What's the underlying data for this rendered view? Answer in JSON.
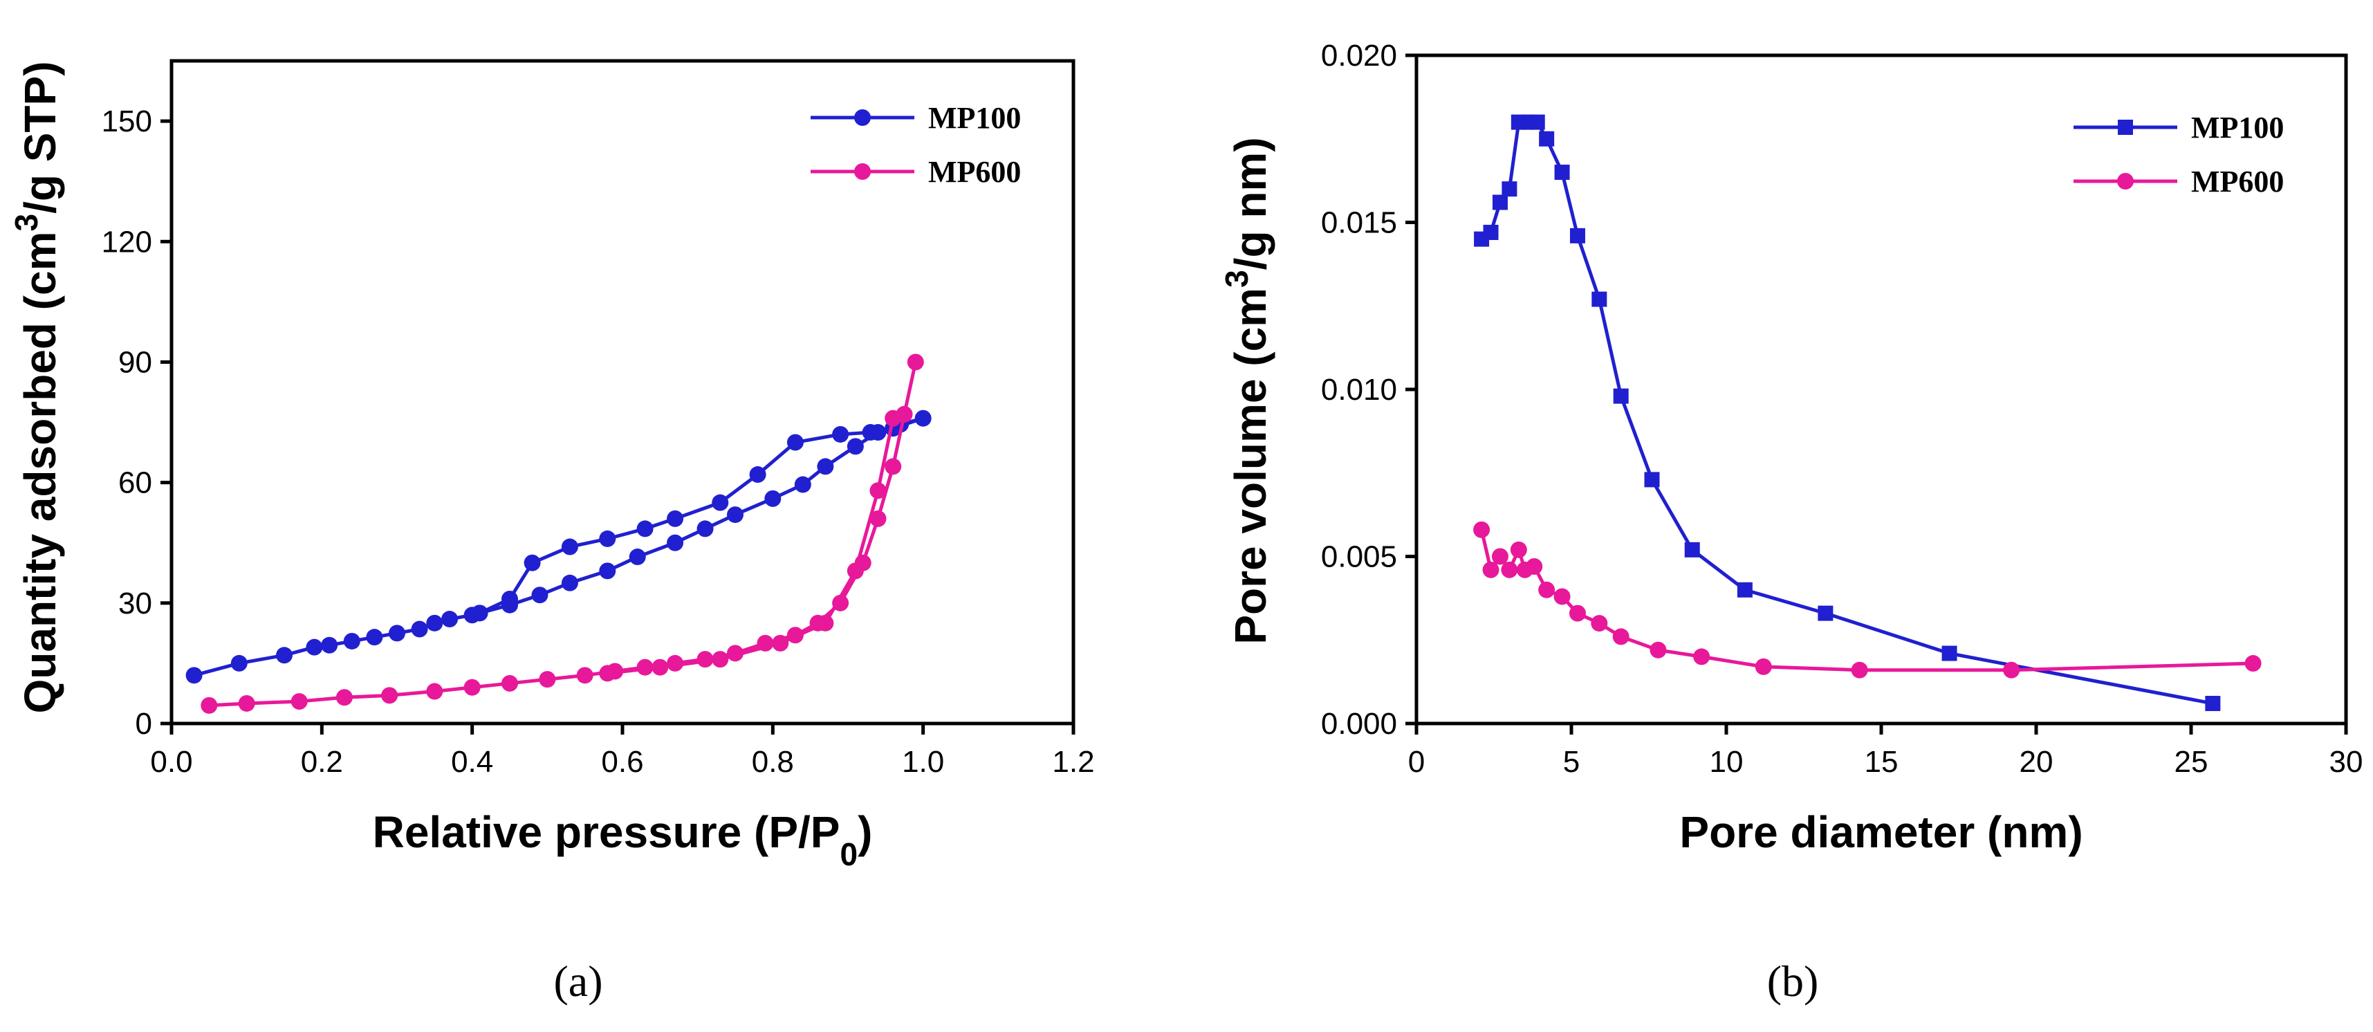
{
  "colors": {
    "mp100": "#2020d0",
    "mp600": "#e8189a"
  },
  "chart_data": [
    {
      "panel": "(a)",
      "type": "line",
      "xlabel": "Relative pressure (P/P0)",
      "ylabel": "Quantity adsorbed (cm3/g STP)",
      "xlim": [
        0.0,
        1.2
      ],
      "ylim": [
        0,
        165
      ],
      "xticks": [
        "0.0",
        "0.2",
        "0.4",
        "0.6",
        "0.8",
        "1.0",
        "1.2"
      ],
      "xtick_values": [
        0.0,
        0.2,
        0.4,
        0.6,
        0.8,
        1.0,
        1.2
      ],
      "yticks": [
        "0",
        "30",
        "60",
        "90",
        "120",
        "150"
      ],
      "ytick_values": [
        0,
        30,
        60,
        90,
        120,
        150
      ],
      "legend_position": "top-right",
      "series": [
        {
          "name": "MP100",
          "color_key": "mp100",
          "marker": "circle",
          "x": [
            0.03,
            0.09,
            0.15,
            0.19,
            0.21,
            0.24,
            0.27,
            0.3,
            0.33,
            0.35,
            0.37,
            0.4,
            0.41,
            0.45,
            0.49,
            0.53,
            0.58,
            0.62,
            0.67,
            0.71,
            0.75,
            0.8,
            0.84,
            0.87,
            0.91,
            0.94,
            0.97,
            1.0,
            0.96,
            0.93,
            0.89,
            0.83,
            0.78,
            0.73,
            0.67,
            0.63,
            0.58,
            0.53,
            0.48,
            0.45,
            0.41
          ],
          "y": [
            12,
            15,
            17,
            19,
            19.5,
            20.5,
            21.5,
            22.5,
            23.5,
            25,
            26,
            27,
            27.5,
            29.5,
            32,
            35,
            38,
            41.5,
            45,
            48.5,
            52,
            56,
            59.5,
            64,
            69,
            72.5,
            74.5,
            76,
            73.5,
            72.5,
            72,
            70,
            62,
            55,
            51,
            48.5,
            46,
            44,
            40,
            31,
            27.5
          ]
        },
        {
          "name": "MP600",
          "color_key": "mp600",
          "marker": "circle",
          "x": [
            0.05,
            0.1,
            0.17,
            0.23,
            0.29,
            0.35,
            0.4,
            0.45,
            0.5,
            0.55,
            0.59,
            0.63,
            0.67,
            0.71,
            0.75,
            0.79,
            0.83,
            0.86,
            0.89,
            0.92,
            0.94,
            0.96,
            0.975,
            0.99,
            0.975,
            0.96,
            0.94,
            0.91,
            0.87,
            0.81,
            0.73,
            0.65,
            0.58
          ],
          "y": [
            4.5,
            5,
            5.5,
            6.5,
            7,
            8,
            9,
            10,
            11,
            12,
            13,
            14,
            15,
            16,
            17.5,
            20,
            22,
            25,
            30,
            40,
            51,
            64,
            77,
            90,
            77,
            76,
            58,
            38,
            25,
            20,
            16,
            14,
            12.5
          ]
        }
      ]
    },
    {
      "panel": "(b)",
      "type": "line",
      "xlabel": "Pore diameter (nm)",
      "ylabel": "Pore volume (cm3/g nm)",
      "xlim": [
        0,
        30
      ],
      "ylim": [
        0,
        0.02
      ],
      "xticks": [
        "0",
        "5",
        "10",
        "15",
        "20",
        "25",
        "30"
      ],
      "xtick_values": [
        0,
        5,
        10,
        15,
        20,
        25,
        30
      ],
      "yticks": [
        "0.000",
        "0.005",
        "0.010",
        "0.015",
        "0.020"
      ],
      "ytick_values": [
        0,
        0.005,
        0.01,
        0.015,
        0.02
      ],
      "legend_position": "top-right",
      "series": [
        {
          "name": "MP100",
          "color_key": "mp100",
          "marker": "square",
          "x": [
            2.1,
            2.4,
            2.7,
            3.0,
            3.3,
            3.6,
            3.9,
            4.2,
            4.7,
            5.2,
            5.9,
            6.6,
            7.6,
            8.9,
            10.6,
            13.2,
            17.2,
            25.7
          ],
          "y": [
            0.0145,
            0.0147,
            0.0156,
            0.016,
            0.018,
            0.018,
            0.018,
            0.0175,
            0.0165,
            0.0146,
            0.0127,
            0.0098,
            0.0073,
            0.0052,
            0.004,
            0.0033,
            0.0021,
            0.0006
          ]
        },
        {
          "name": "MP600",
          "color_key": "mp600",
          "marker": "circle",
          "x": [
            2.1,
            2.4,
            2.7,
            3.0,
            3.3,
            3.5,
            3.8,
            4.2,
            4.7,
            5.2,
            5.9,
            6.6,
            7.8,
            9.2,
            11.2,
            14.3,
            19.2,
            27.0
          ],
          "y": [
            0.0058,
            0.0046,
            0.005,
            0.0046,
            0.0052,
            0.0046,
            0.0047,
            0.004,
            0.0038,
            0.0033,
            0.003,
            0.0026,
            0.0022,
            0.002,
            0.0017,
            0.0016,
            0.0016,
            0.0018
          ]
        }
      ]
    }
  ],
  "captions": [
    "(a)",
    "(b)"
  ]
}
